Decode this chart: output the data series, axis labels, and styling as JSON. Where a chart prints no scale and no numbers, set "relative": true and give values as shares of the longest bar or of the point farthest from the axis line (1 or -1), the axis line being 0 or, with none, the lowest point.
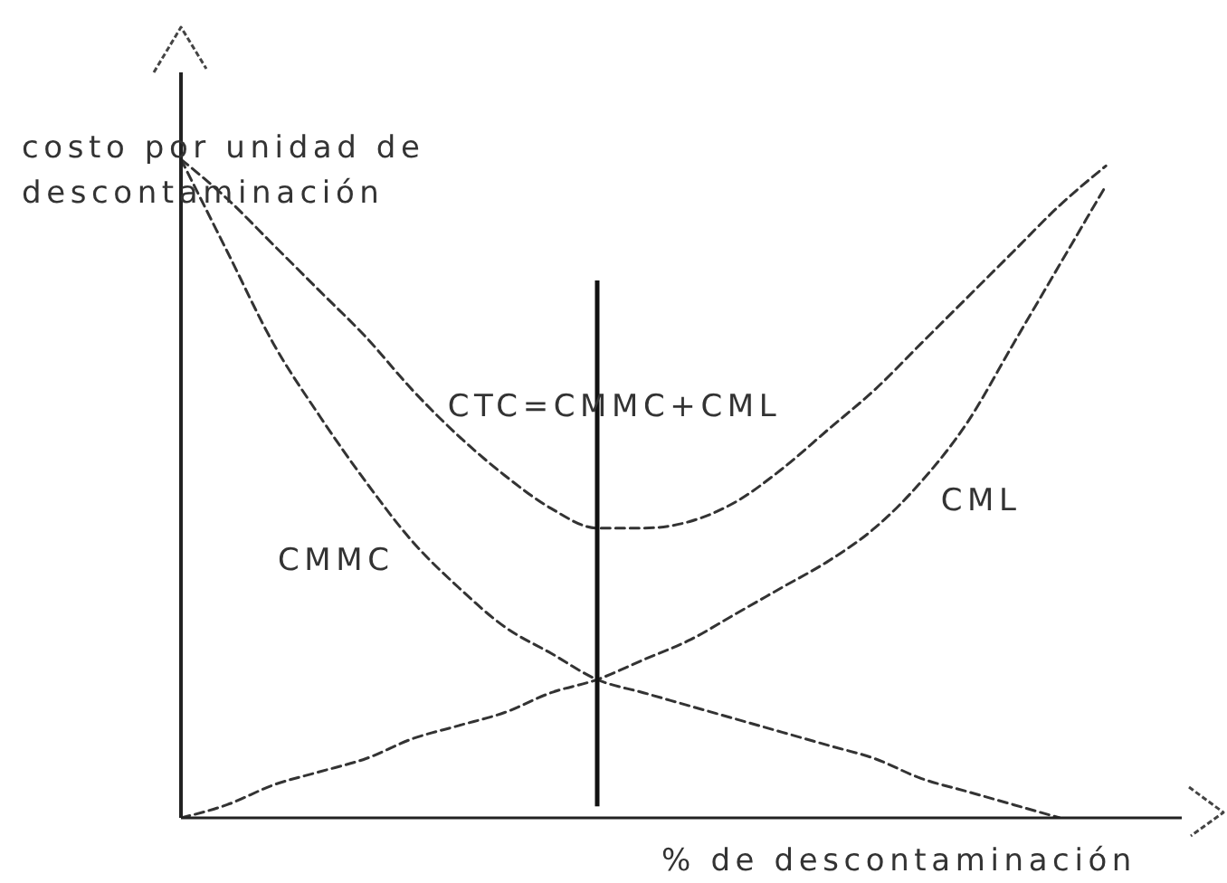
{
  "chart_data": {
    "type": "line",
    "xlabel": "% de descontaminación",
    "ylabel": "costo por unidad de descontaminación",
    "relative": true,
    "line_style": "dashed",
    "categories": [
      null,
      null,
      null,
      null,
      null,
      null,
      null,
      null,
      null,
      null,
      null,
      null,
      null,
      null,
      null,
      null,
      null,
      null,
      null,
      null,
      null
    ],
    "series": [
      {
        "name": "CMMC",
        "color": "#333333",
        "values": [
          1.0,
          0.86,
          0.72,
          0.61,
          0.51,
          0.42,
          0.35,
          0.29,
          0.25,
          0.21,
          0.19,
          0.17,
          0.15,
          0.13,
          0.11,
          0.09,
          0.06,
          0.04,
          0.02,
          0.0,
          null
        ]
      },
      {
        "name": "CML",
        "color": "#333333",
        "values": [
          0.0,
          0.02,
          0.05,
          0.07,
          0.09,
          0.12,
          0.14,
          0.16,
          0.19,
          0.21,
          0.24,
          0.27,
          0.31,
          0.35,
          0.39,
          0.44,
          0.51,
          0.6,
          0.72,
          0.84,
          0.96
        ]
      },
      {
        "name": "CTC=CMMC+CML",
        "color": "#333333",
        "values": [
          1.0,
          0.94,
          0.87,
          0.8,
          0.73,
          0.65,
          0.58,
          0.52,
          0.47,
          0.44,
          0.44,
          0.45,
          0.48,
          0.53,
          0.59,
          0.65,
          0.72,
          0.79,
          0.86,
          0.93,
          0.99
        ]
      }
    ]
  }
}
